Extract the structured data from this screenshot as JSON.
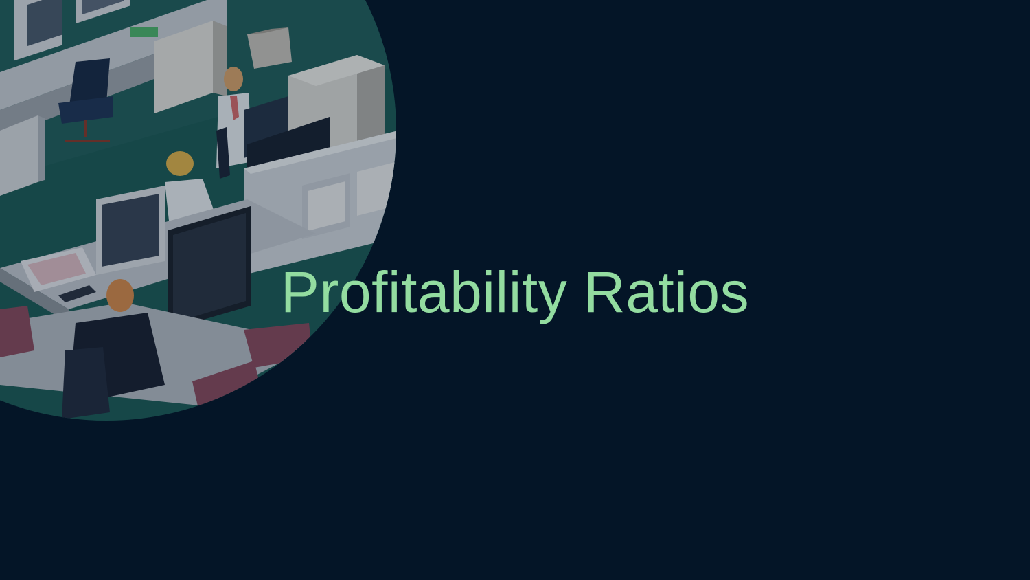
{
  "slide": {
    "title": "Profitability Ratios",
    "background_color": "#041527",
    "title_color": "#93dca0"
  },
  "illustration": {
    "subject": "isometric-office-workspace",
    "overlay": "dark-translucent"
  }
}
